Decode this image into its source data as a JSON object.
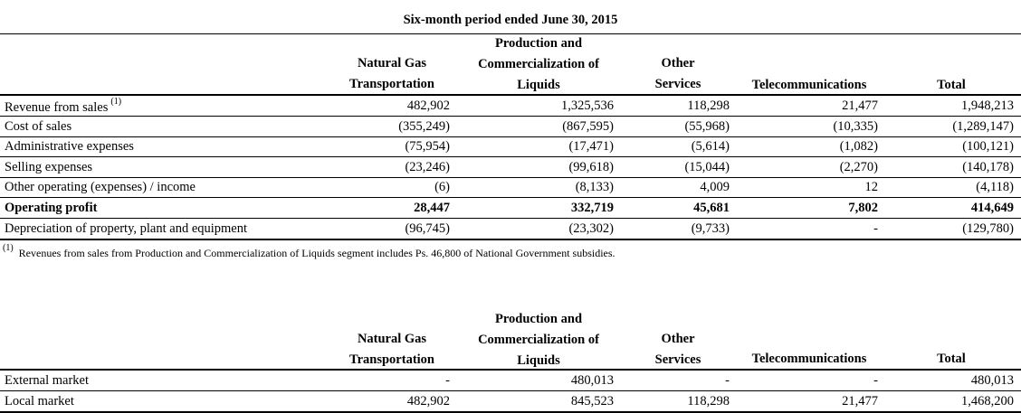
{
  "table1": {
    "title": "Six-month period ended June 30, 2015",
    "headers": {
      "ngt": [
        "Natural Gas",
        "Transportation"
      ],
      "pcl": [
        "Production and",
        "Commercialization of",
        "Liquids"
      ],
      "os": [
        "Other",
        "Services"
      ],
      "tel": "Telecommunications",
      "tot": "Total"
    },
    "rows": [
      {
        "label": "Revenue from sales",
        "sup": "(1)",
        "values": [
          "482,902",
          "1,325,536",
          "118,298",
          "21,477",
          "1,948,213"
        ]
      },
      {
        "label": "Cost of sales",
        "values": [
          "(355,249)",
          "(867,595)",
          "(55,968)",
          "(10,335)",
          "(1,289,147)"
        ]
      },
      {
        "label": "Administrative expenses",
        "values": [
          "(75,954)",
          "(17,471)",
          "(5,614)",
          "(1,082)",
          "(100,121)"
        ]
      },
      {
        "label": "Selling expenses",
        "values": [
          "(23,246)",
          "(99,618)",
          "(15,044)",
          "(2,270)",
          "(140,178)"
        ]
      },
      {
        "label": "Other operating (expenses) / income",
        "values": [
          "(6)",
          "(8,133)",
          "4,009",
          "12",
          "(4,118)"
        ]
      },
      {
        "label": "Operating profit",
        "bold": true,
        "values": [
          "28,447",
          "332,719",
          "45,681",
          "7,802",
          "414,649"
        ]
      },
      {
        "label": "Depreciation of property, plant and equipment",
        "values": [
          "(96,745)",
          "(23,302)",
          "(9,733)",
          "-",
          "(129,780)"
        ]
      }
    ],
    "footnote_marker": "(1)",
    "footnote": "Revenues from sales from Production and Commercialization of Liquids segment includes Ps. 46,800 of National Government subsidies."
  },
  "table2": {
    "headers": {
      "ngt": [
        "Natural Gas",
        "Transportation"
      ],
      "pcl": [
        "Production and",
        "Commercialization of",
        "Liquids"
      ],
      "os": [
        "Other",
        "Services"
      ],
      "tel": "Telecommunications",
      "tot": "Total"
    },
    "rows": [
      {
        "label": "External market",
        "values": [
          "-",
          "480,013",
          "-",
          "-",
          "480,013"
        ]
      },
      {
        "label": "Local market",
        "values": [
          "482,902",
          "845,523",
          "118,298",
          "21,477",
          "1,468,200"
        ]
      }
    ]
  }
}
